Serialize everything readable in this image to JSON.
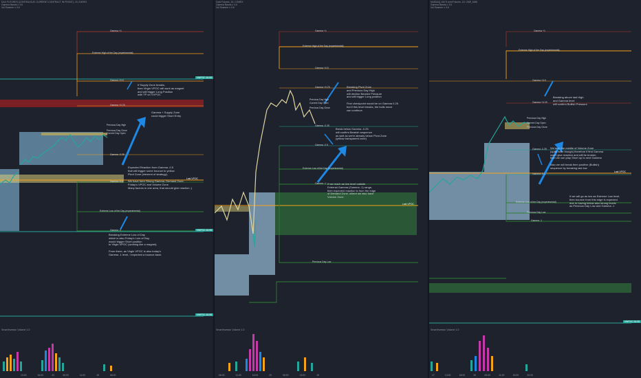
{
  "panels": [
    {
      "header": [
        "DAX FUTURES (CONTINUOUS: CURRENT CONTRACT IN FRONT), 15, EUREX",
        "Gamma Bands v 3.6",
        "Vol Scanner v 3.6"
      ],
      "price_ticks": [
        "15"
      ],
      "levels": [
        "Gamma +1",
        "Extreme High of the Day (experimental)",
        "Gamma +0.5",
        "Gamma +0.25",
        "Previous Day High",
        "Previous Day Close",
        "Current Day Open",
        "Gamma -0.25",
        "Gamma -0.5",
        "Extreme Low of the Day (experimental)",
        "Gamma -1"
      ],
      "tags": [
        "VWPOC 16.08",
        "VWPOC 15.08",
        "VWPOC 15.08"
      ],
      "last_vpoc": "Last VPOC",
      "notes": [
        "If Supply Zone breaks,\nthen Virgin VPOC will work as magnet\nand will trigger Long Position\nwith TP on VVPOC",
        "Gamma + Supply Zone\ncould trigger Short Entry",
        "Expected Reaction from Gamma -0.5\nthat will trigger some bounce to yellow\nPivot Zone (element of strategy).",
        "We have here Strong Gamma, Demand Zone,\nFriday's VPOC and Volume Zone.\nMany factors in one area, that should give reaction ;)",
        "Breaking Extreme Low of Day\nwhich is also Friday's Low of Day,\nwould trigger Short position\nto Virgin VPOC (working like a magnet).",
        "From there, as Virgin VPOC is also today's\nGamma -1 level, I expected a bounce-back."
      ],
      "volume_label": "SmartInvestor Volume 1.0",
      "times": [
        "13:00",
        "16:00",
        "20",
        "06:00",
        "11:00",
        "15",
        "06:00"
      ]
    },
    {
      "header": [
        "Gold Futures, 15, COMEX",
        "Gamma Bands v 3.6",
        "Vol Scanner v 3.6"
      ],
      "levels": [
        "Gamma +1",
        "Extreme High of the Day (experimental)",
        "Gamma +0.5",
        "Gamma +0.25",
        "Previous Day High",
        "Current Day Open",
        "Previous Day Close",
        "Gamma -0.25",
        "Gamma -0.5",
        "Extreme Low of the Day (experimental)",
        "Gamma -1",
        "Previous Day Low"
      ],
      "last_vpoc": "Last VPOC",
      "notes": [
        "Breaking Pivot Zone\nand Previous Day High\nwill decline Bearish Pressure\nand will trigger Long position",
        "First checkpoint would be on Gamma 0.25\nbut if this level breaks, the bulls move\ncan continue.",
        "Break below Gamma -0.25\nwill confirm Bearish sequence\nas well as we're already below Pivot Zone\n(yellow transparent zone)",
        "If we reach as low level outside\nExternal Gamma (Gamma -1) range,\nthen expected reaction is from the edge\nof Demand Zone, where we also have\nVolume Zone"
      ],
      "volume_label": "SmartInvestor Volume 1.0",
      "times": [
        "06:00",
        "11:00",
        "16:00",
        "20",
        "06:00",
        "13:00",
        "15"
      ]
    },
    {
      "header": [
        "NASDAQ 100 E-mini Futures, 15, CME_MINI",
        "Gamma Bands v 3.6",
        "Vol Scanner v 3.6"
      ],
      "levels": [
        "Gamma +1",
        "Extreme High of the Day (experimental)",
        "Gamma +0.5",
        "Gamma +0.25",
        "Previous Day High",
        "Current Day Open",
        "Previous Day Close",
        "Gamma -0.25",
        "Gamma -0.5",
        "Extreme Low of the Day (experimental)",
        "Previous Day Low",
        "Gamma -1"
      ],
      "tags": [
        "VWPOC 15.08"
      ],
      "last_vpoc": "Last VPOC",
      "notes": [
        "Breaking above last High\nand Gamma level\nwill confirm Bullish Pressure",
        "We're in the middle of Volume Zone\n(quite wide though) therefore if first Gamma\nwon't give reaction and will be broken,\nthen we can play Short up to next Gamma",
        "Also we will break then positive (Bullish)\nsequence by breaking last low",
        "If we will go as low as Extreme Low level,\nthen bounce from this edge is expected\ndue to having below also strong levels\nas Previous Day Low and Gamma -1"
      ],
      "volume_label": "SmartInvestor Volume 1.0",
      "times": [
        "17",
        "13:00",
        "18:00",
        "20",
        "05:00",
        "11:00",
        "15:00",
        "20:00"
      ]
    }
  ],
  "colors": {
    "bg": "#1e222d",
    "orange": "#f7a21b",
    "teal": "#26a69a",
    "green": "#2e7d32",
    "red": "#b71c1c",
    "yellow": "#e3c244",
    "blue": "#1e88e5",
    "magenta": "#c53aa8"
  }
}
